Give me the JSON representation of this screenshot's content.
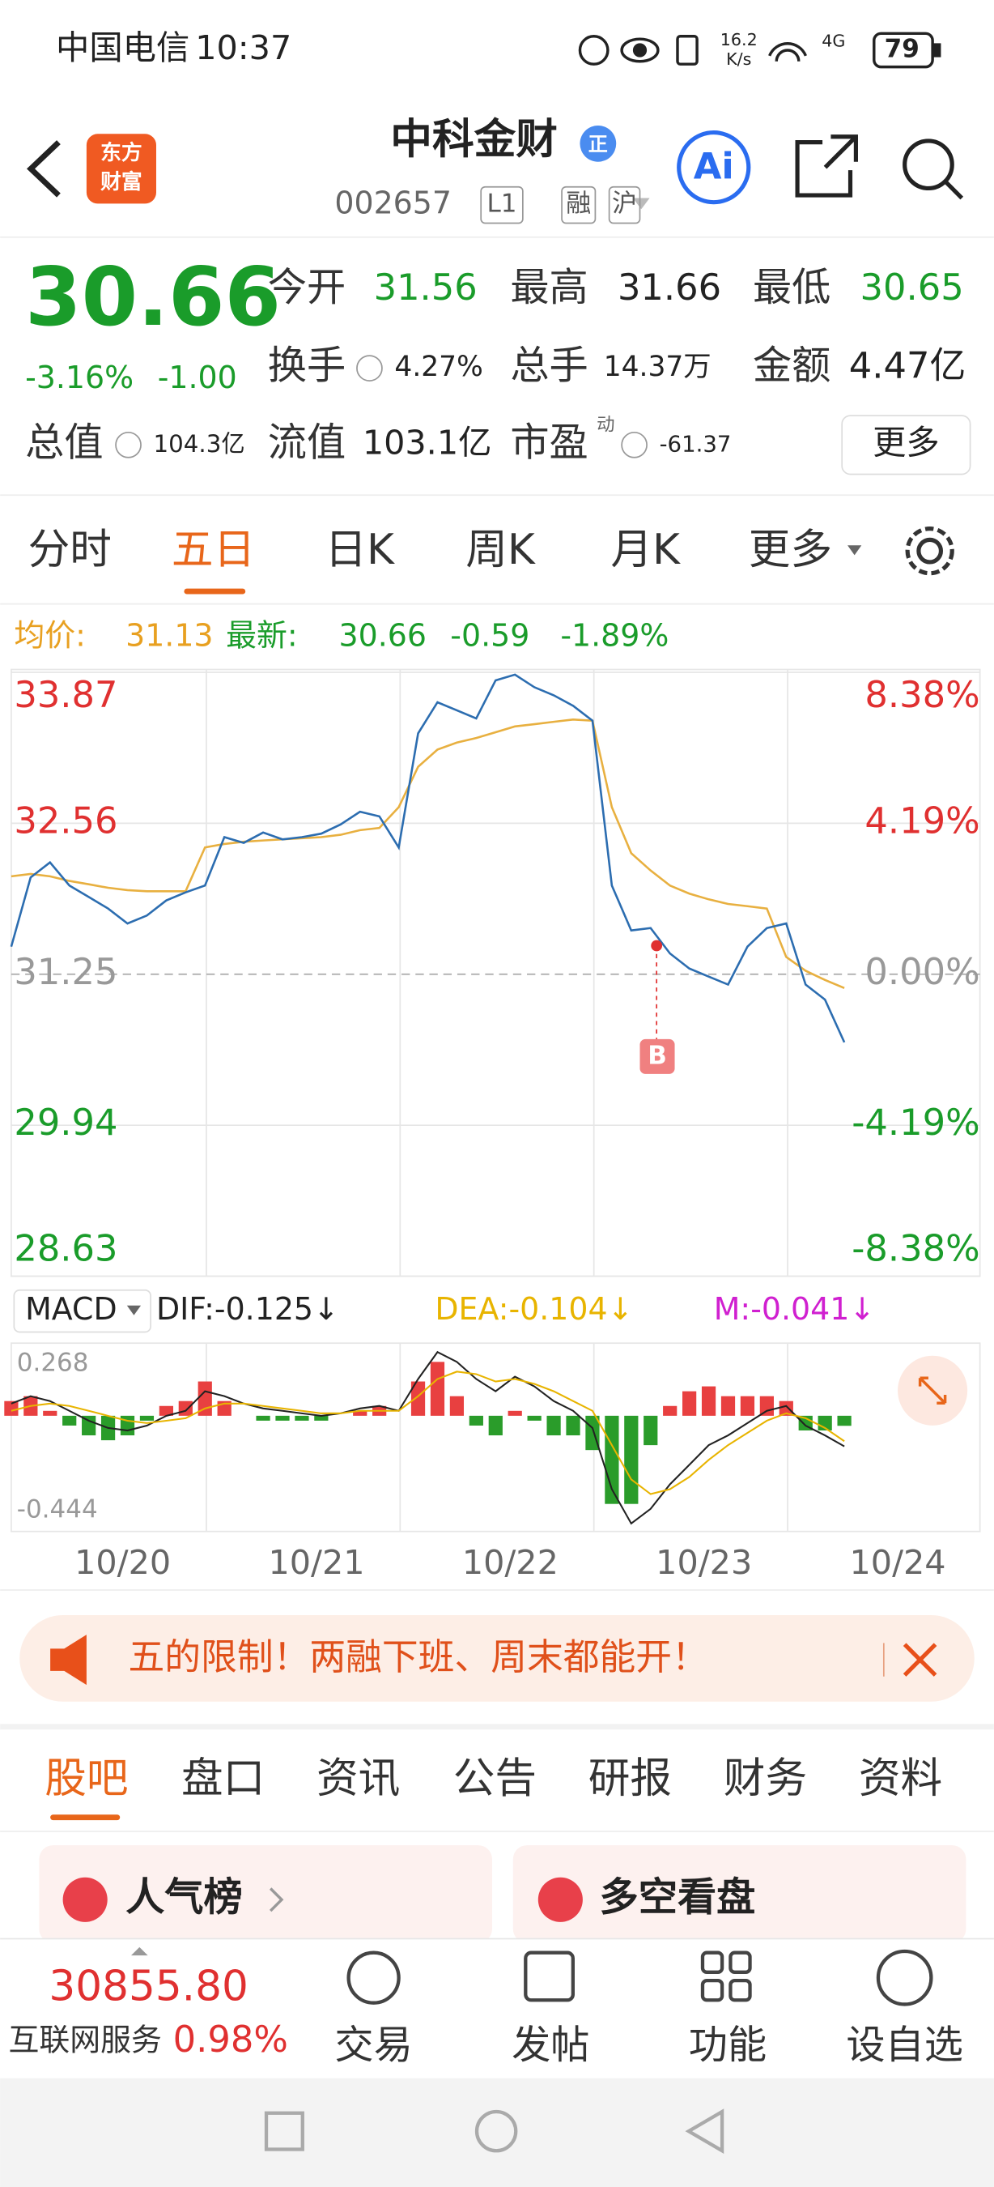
{
  "status_bar": {
    "carrier": "中国电信",
    "time": "10:37",
    "speed": "16.2",
    "speed_unit": "K/s",
    "network": "4G",
    "battery": "79"
  },
  "header": {
    "logo": [
      "东方",
      "财富"
    ],
    "name": "中科金财",
    "badge": "正",
    "code": "002657",
    "tags": [
      "L1",
      "融",
      "沪"
    ],
    "ai": "Ai"
  },
  "quote": {
    "price": "30.66",
    "change_pct": "-3.16%",
    "change": "-1.00",
    "open_label": "今开",
    "open": "31.56",
    "high_label": "最高",
    "high": "31.66",
    "low_label": "最低",
    "low": "30.65",
    "turnover_label": "换手",
    "turnover": "4.27%",
    "volume_label": "总手",
    "volume": "14.37万",
    "amount_label": "金额",
    "amount": "4.47亿",
    "mcap_label": "总值",
    "mcap": "104.3亿",
    "float_label": "流值",
    "float": "103.1亿",
    "pe_label": "市盈",
    "pe_sup": "动",
    "pe": "-61.37",
    "more": "更多"
  },
  "tabs": {
    "items": [
      "分时",
      "五日",
      "日K",
      "周K",
      "月K",
      "更多"
    ],
    "active": 1
  },
  "chart": {
    "avg_label": "均价:",
    "avg": "31.13",
    "latest_label": "最新:",
    "latest": "30.66",
    "change": "-0.59",
    "change_pct": "-1.89%",
    "yticks": [
      33.87,
      32.56,
      31.25,
      29.94,
      28.63
    ],
    "pct_ticks": [
      "8.38%",
      "4.19%",
      "0.00%",
      "-4.19%",
      "-8.38%"
    ],
    "marker": "B",
    "dates": [
      "10/20",
      "10/21",
      "10/22",
      "10/23",
      "10/24"
    ],
    "price": [
      31.49,
      32.09,
      32.22,
      32.02,
      31.92,
      31.82,
      31.69,
      31.76,
      31.89,
      31.96,
      32.02,
      32.44,
      32.39,
      32.48,
      32.42,
      32.44,
      32.47,
      32.55,
      32.66,
      32.62,
      32.35,
      33.34,
      33.61,
      33.54,
      33.47,
      33.8,
      33.85,
      33.74,
      33.67,
      33.58,
      33.45,
      32.02,
      31.63,
      31.65,
      31.43,
      31.3,
      31.23,
      31.16,
      31.49,
      31.65,
      31.69,
      31.16,
      31.03,
      30.66
    ],
    "average": [
      32.1,
      32.12,
      32.1,
      32.06,
      32.03,
      32.0,
      31.98,
      31.97,
      31.97,
      31.97,
      32.35,
      32.38,
      32.4,
      32.41,
      32.42,
      32.43,
      32.44,
      32.46,
      32.5,
      32.52,
      32.7,
      33.05,
      33.2,
      33.26,
      33.3,
      33.35,
      33.4,
      33.42,
      33.44,
      33.46,
      33.45,
      32.7,
      32.3,
      32.15,
      32.02,
      31.95,
      31.9,
      31.86,
      31.84,
      31.82,
      31.4,
      31.28,
      31.2,
      31.13
    ]
  },
  "macd": {
    "selector": "MACD",
    "dif_label": "DIF:-0.125↓",
    "dea_label": "DEA:-0.104↓",
    "m_label": "M:-0.041↓",
    "ylim": [
      -0.444,
      0.268
    ],
    "top": "0.268",
    "bottom": "-0.444",
    "dif": [
      0.05,
      0.08,
      0.06,
      0.02,
      -0.02,
      -0.05,
      -0.06,
      -0.04,
      0.0,
      0.02,
      0.1,
      0.08,
      0.05,
      0.03,
      0.02,
      0.01,
      0.0,
      0.01,
      0.03,
      0.04,
      0.02,
      0.15,
      0.26,
      0.22,
      0.15,
      0.1,
      0.16,
      0.12,
      0.06,
      0.02,
      -0.05,
      -0.3,
      -0.44,
      -0.38,
      -0.28,
      -0.2,
      -0.12,
      -0.08,
      -0.03,
      0.02,
      0.04,
      -0.04,
      -0.08,
      -0.125
    ],
    "dea": [
      0.02,
      0.04,
      0.05,
      0.04,
      0.02,
      0.0,
      -0.02,
      -0.03,
      -0.02,
      -0.01,
      0.03,
      0.05,
      0.05,
      0.04,
      0.03,
      0.02,
      0.01,
      0.01,
      0.02,
      0.02,
      0.02,
      0.08,
      0.15,
      0.18,
      0.17,
      0.14,
      0.15,
      0.13,
      0.1,
      0.06,
      0.02,
      -0.12,
      -0.26,
      -0.32,
      -0.3,
      -0.25,
      -0.18,
      -0.12,
      -0.07,
      -0.02,
      0.01,
      -0.01,
      -0.05,
      -0.104
    ],
    "m": [
      0.06,
      0.08,
      0.02,
      -0.04,
      -0.08,
      -0.1,
      -0.08,
      -0.02,
      0.04,
      0.06,
      0.14,
      0.06,
      0.0,
      -0.02,
      -0.02,
      -0.02,
      -0.02,
      0.0,
      0.02,
      0.04,
      0.0,
      0.14,
      0.22,
      0.08,
      -0.04,
      -0.08,
      0.02,
      -0.02,
      -0.08,
      -0.08,
      -0.14,
      -0.36,
      -0.36,
      -0.12,
      0.04,
      0.1,
      0.12,
      0.08,
      0.08,
      0.08,
      0.06,
      -0.06,
      -0.06,
      -0.041
    ]
  },
  "banner": {
    "text": "五的限制！两融下班、周末都能开！"
  },
  "sections": {
    "items": [
      "股吧",
      "盘口",
      "资讯",
      "公告",
      "研报",
      "财务",
      "资料"
    ],
    "active": 0,
    "cards": [
      "人气榜",
      "多空看盘"
    ]
  },
  "bottom": {
    "index_value": "30855.80",
    "index_name": "互联网服务",
    "index_pct": "0.98%",
    "buttons": [
      "交易",
      "发帖",
      "功能",
      "设自选"
    ]
  }
}
